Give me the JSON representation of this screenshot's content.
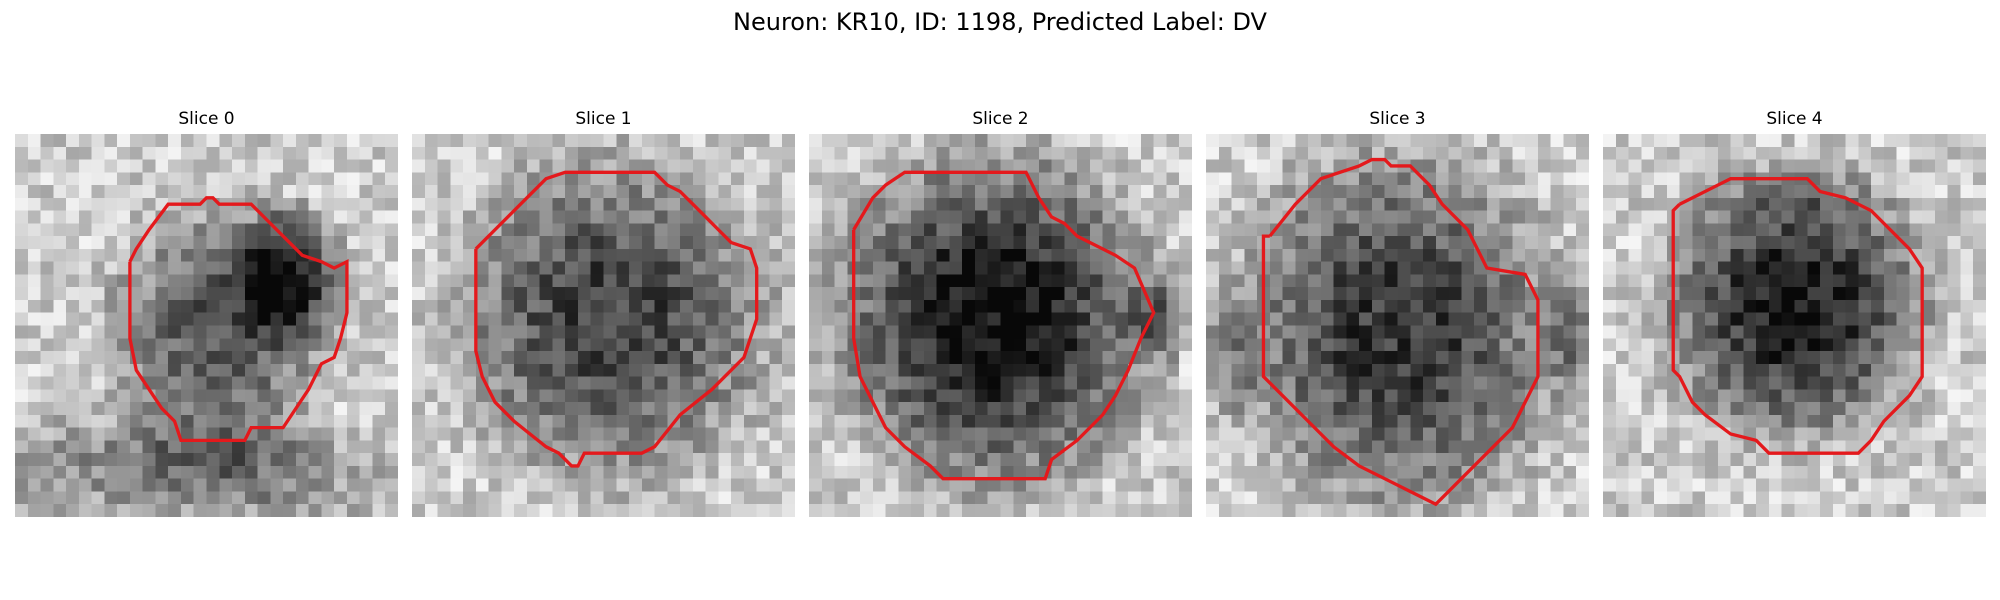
{
  "figure": {
    "title": "Neuron: KR10, ID: 1198, Predicted Label: DV"
  },
  "colors": {
    "contour": "#e4191c",
    "colormap": "grayscale"
  },
  "slices": [
    {
      "label": "Slice 0"
    },
    {
      "label": "Slice 1"
    },
    {
      "label": "Slice 2"
    },
    {
      "label": "Slice 3"
    },
    {
      "label": "Slice 4"
    }
  ]
}
